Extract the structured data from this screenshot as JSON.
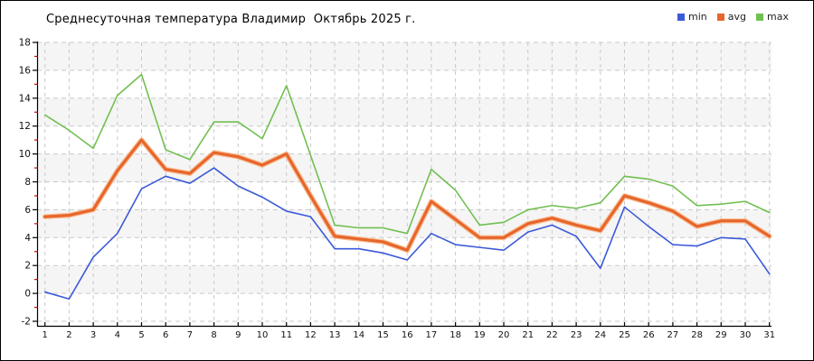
{
  "chart": {
    "title": "Среднесуточная температура Владимир  Октябрь 2025 г."
  },
  "chart_data": {
    "type": "line",
    "title": "Среднесуточная температура Владимир  Октябрь 2025 г.",
    "x": [
      1,
      2,
      3,
      4,
      5,
      6,
      7,
      8,
      9,
      10,
      11,
      12,
      13,
      14,
      15,
      16,
      17,
      18,
      19,
      20,
      21,
      22,
      23,
      24,
      25,
      26,
      27,
      28,
      29,
      30,
      31
    ],
    "xtick_labels": [
      "1",
      "2",
      "3",
      "4",
      "5",
      "6",
      "7",
      "8",
      "9",
      "10",
      "11",
      "12",
      "13",
      "14",
      "15",
      "16",
      "17",
      "18",
      "19",
      "20",
      "21",
      "22",
      "23",
      "24",
      "25",
      "26",
      "27",
      "28",
      "29",
      "30",
      "31"
    ],
    "ylim": [
      -2,
      18
    ],
    "ytick_step": 2,
    "yticks": [
      18,
      16,
      14,
      12,
      10,
      8,
      6,
      4,
      2,
      0,
      -2
    ],
    "grid": "dashed",
    "legend_position": "top-right",
    "series": [
      {
        "name": "min",
        "color": "#3b5ad8",
        "width": 1.6,
        "values": [
          0.1,
          -0.4,
          2.6,
          4.3,
          7.5,
          8.4,
          7.9,
          9.0,
          7.7,
          6.9,
          5.9,
          5.5,
          3.2,
          3.2,
          2.9,
          2.4,
          4.3,
          3.5,
          3.3,
          3.1,
          4.4,
          4.9,
          4.1,
          1.8,
          6.2,
          4.8,
          3.5,
          3.4,
          4.0,
          3.9,
          1.4
        ]
      },
      {
        "name": "avg",
        "color": "#e7662c",
        "halo_color": "#f8c096",
        "width": 3.2,
        "values": [
          5.5,
          5.6,
          6.0,
          8.8,
          11.0,
          8.9,
          8.6,
          10.1,
          9.8,
          9.2,
          10.0,
          7.0,
          4.1,
          3.9,
          3.7,
          3.1,
          6.6,
          5.3,
          4.0,
          4.0,
          5.0,
          5.4,
          4.9,
          4.5,
          7.0,
          6.5,
          5.9,
          4.8,
          5.2,
          5.2,
          4.1
        ]
      },
      {
        "name": "max",
        "color": "#72bf52",
        "width": 1.6,
        "values": [
          12.8,
          11.7,
          10.4,
          14.2,
          15.7,
          10.3,
          9.6,
          12.3,
          12.3,
          11.1,
          14.9,
          9.9,
          4.9,
          4.7,
          4.7,
          4.3,
          8.9,
          7.4,
          4.9,
          5.1,
          6.0,
          6.3,
          6.1,
          6.5,
          8.4,
          8.2,
          7.7,
          6.3,
          6.4,
          6.6,
          5.8
        ]
      }
    ],
    "style": {
      "band_color_a": "#f5f5f5",
      "band_color_b": "#ffffff",
      "grid_color": "#c9c9c9",
      "axis_color": "#000000",
      "minor_tick_color": "#cc0000",
      "label_color": "#111111"
    }
  }
}
